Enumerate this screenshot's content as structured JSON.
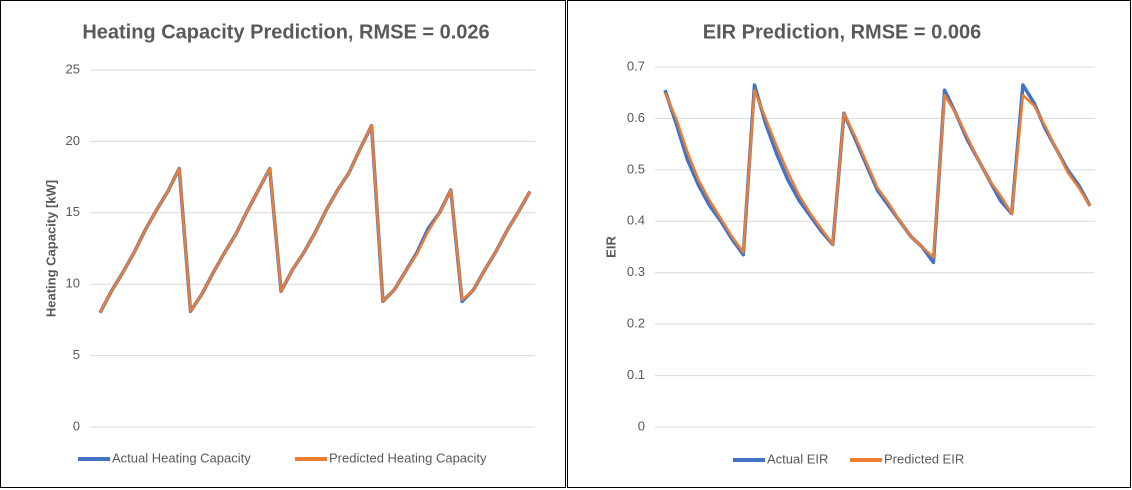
{
  "chart_data": [
    {
      "type": "line",
      "title": "Heating Capacity Prediction, RMSE = 0.026",
      "y_label": "Heating Capacity [kW]",
      "ylim": [
        0,
        25
      ],
      "yticks": [
        0,
        5,
        10,
        15,
        20,
        25
      ],
      "grid": true,
      "legend": "bottom",
      "series": [
        {
          "name": "Actual Heating Capacity",
          "color": "#4472c4",
          "values": [
            8,
            9.5,
            10.8,
            12.2,
            13.8,
            15.2,
            16.5,
            18.1,
            8.1,
            9.3,
            10.8,
            12.2,
            13.5,
            15.1,
            16.6,
            18.1,
            9.5,
            11,
            12.2,
            13.6,
            15.2,
            16.6,
            17.8,
            19.5,
            21.1,
            8.8,
            9.6,
            10.9,
            12.2,
            13.9,
            15,
            16.6,
            8.8,
            9.6,
            11,
            12.3,
            13.8,
            15.1,
            16.5
          ]
        },
        {
          "name": "Predicted Heating Capacity",
          "color": "#ed7d31",
          "values": [
            8,
            9.5,
            10.8,
            12.2,
            13.8,
            15.2,
            16.5,
            18.1,
            8.1,
            9.3,
            10.8,
            12.2,
            13.5,
            15.1,
            16.6,
            18.1,
            9.5,
            11,
            12.2,
            13.6,
            15.2,
            16.6,
            17.8,
            19.5,
            21.1,
            8.8,
            9.6,
            10.9,
            12.1,
            13.7,
            15,
            16.6,
            8.9,
            9.6,
            11,
            12.3,
            13.8,
            15.1,
            16.5
          ]
        }
      ]
    },
    {
      "type": "line",
      "title": "EIR Prediction, RMSE = 0.006",
      "y_label": "EIR",
      "ylim": [
        0,
        0.7
      ],
      "yticks": [
        0,
        0.1,
        0.2,
        0.3,
        0.4,
        0.5,
        0.6,
        0.7
      ],
      "grid": true,
      "legend": "bottom",
      "series": [
        {
          "name": "Actual EIR",
          "color": "#4472c4",
          "values": [
            0.655,
            0.59,
            0.52,
            0.47,
            0.43,
            0.4,
            0.365,
            0.335,
            0.665,
            0.59,
            0.53,
            0.48,
            0.44,
            0.41,
            0.38,
            0.355,
            0.61,
            0.56,
            0.51,
            0.46,
            0.43,
            0.4,
            0.37,
            0.35,
            0.32,
            0.655,
            0.61,
            0.56,
            0.52,
            0.48,
            0.44,
            0.415,
            0.665,
            0.63,
            0.58,
            0.54,
            0.5,
            0.47,
            0.43
          ]
        },
        {
          "name": "Predicted EIR",
          "color": "#ed7d31",
          "values": [
            0.65,
            0.6,
            0.535,
            0.48,
            0.44,
            0.405,
            0.37,
            0.34,
            0.655,
            0.6,
            0.545,
            0.495,
            0.45,
            0.415,
            0.385,
            0.355,
            0.61,
            0.565,
            0.515,
            0.465,
            0.435,
            0.4,
            0.37,
            0.35,
            0.33,
            0.645,
            0.61,
            0.565,
            0.52,
            0.48,
            0.45,
            0.415,
            0.645,
            0.625,
            0.585,
            0.54,
            0.495,
            0.465,
            0.43
          ]
        }
      ]
    }
  ]
}
